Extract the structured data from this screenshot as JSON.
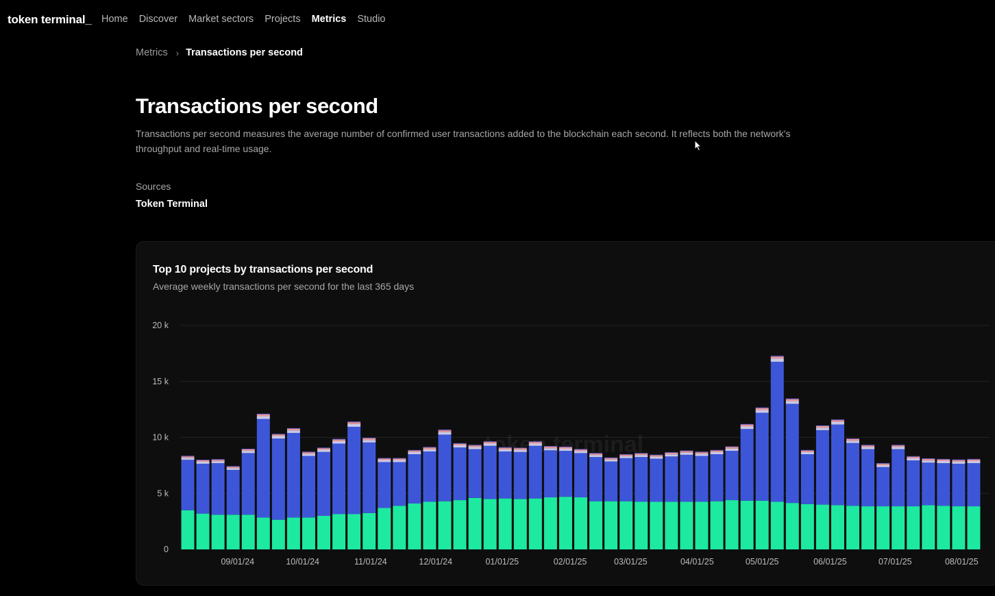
{
  "nav": {
    "logo": "token terminal_",
    "items": [
      {
        "label": "Home",
        "active": false
      },
      {
        "label": "Discover",
        "active": false
      },
      {
        "label": "Market sectors",
        "active": false
      },
      {
        "label": "Projects",
        "active": false
      },
      {
        "label": "Metrics",
        "active": true
      },
      {
        "label": "Studio",
        "active": false
      }
    ]
  },
  "breadcrumb": {
    "root": "Metrics",
    "separator": "›",
    "current": "Transactions per second"
  },
  "page": {
    "title": "Transactions per second",
    "description": "Transactions per second measures the average number of confirmed user transactions added to the blockchain each second. It reflects both the network's throughput and real-time usage.",
    "sources_label": "Sources",
    "sources_value": "Token Terminal"
  },
  "colors": {
    "green": "#1de9a0",
    "blue": "#3d56d8",
    "top1": "#c9c9e8",
    "top2": "#e79a9a",
    "top3": "#6a5ec9",
    "grid": "#232325",
    "axis_text": "#bdbdbd"
  },
  "chart_data": {
    "type": "bar",
    "stacked": true,
    "title": "Top 10 projects by transactions per second",
    "subtitle": "Average weekly transactions per second for the last 365 days",
    "watermark": "token terminal",
    "ylim": [
      0,
      20000
    ],
    "yticks": [
      {
        "value": 0,
        "label": "0"
      },
      {
        "value": 5000,
        "label": "5 k"
      },
      {
        "value": 10000,
        "label": "10 k"
      },
      {
        "value": 15000,
        "label": "15 k"
      },
      {
        "value": 20000,
        "label": "20 k"
      }
    ],
    "xtick_labels": [
      {
        "index": 3.3,
        "label": "09/01/24"
      },
      {
        "index": 7.6,
        "label": "10/01/24"
      },
      {
        "index": 12.1,
        "label": "11/01/24"
      },
      {
        "index": 16.4,
        "label": "12/01/24"
      },
      {
        "index": 20.8,
        "label": "01/01/25"
      },
      {
        "index": 25.3,
        "label": "02/01/25"
      },
      {
        "index": 29.3,
        "label": "03/01/25"
      },
      {
        "index": 33.7,
        "label": "04/01/25"
      },
      {
        "index": 38.0,
        "label": "05/01/25"
      },
      {
        "index": 42.5,
        "label": "06/01/25"
      },
      {
        "index": 46.8,
        "label": "07/01/25"
      },
      {
        "index": 51.2,
        "label": "08/01/25"
      }
    ],
    "series": [
      {
        "values": [
          3500,
          3200,
          3100,
          3100,
          3100,
          2850,
          2650,
          2850,
          2850,
          3000,
          3150,
          3150,
          3250,
          3700,
          3900,
          4100,
          4250,
          4300,
          4400,
          4600,
          4500,
          4550,
          4500,
          4550,
          4650,
          4700,
          4650,
          4300,
          4300,
          4300,
          4250,
          4250,
          4250,
          4250,
          4250,
          4300,
          4400,
          4350,
          4350,
          4250,
          4150,
          4050,
          4000,
          3950,
          3900,
          3850,
          3850,
          3850,
          3850,
          3950,
          3900,
          3850,
          3850
        ]
      },
      {
        "values": [
          4500,
          4450,
          4600,
          4000,
          5500,
          8800,
          7250,
          7550,
          5500,
          5700,
          6300,
          7800,
          6300,
          4100,
          3900,
          4400,
          4500,
          5950,
          4700,
          4350,
          4750,
          4200,
          4200,
          4700,
          4200,
          4100,
          3950,
          3950,
          3550,
          3850,
          4000,
          3850,
          4050,
          4200,
          4100,
          4200,
          4400,
          6400,
          7850,
          12500,
          8850,
          4450,
          6650,
          7200,
          5600,
          5100,
          3500,
          5100,
          4100,
          3800,
          3800,
          3800,
          3850
        ]
      },
      {
        "values": [
          180,
          180,
          180,
          170,
          200,
          250,
          220,
          230,
          190,
          200,
          220,
          250,
          220,
          180,
          180,
          190,
          200,
          230,
          200,
          200,
          200,
          190,
          190,
          200,
          190,
          190,
          180,
          180,
          180,
          180,
          180,
          180,
          190,
          190,
          190,
          190,
          200,
          230,
          250,
          280,
          250,
          190,
          220,
          230,
          210,
          200,
          180,
          200,
          190,
          190,
          190,
          190,
          190
        ]
      },
      {
        "values": [
          120,
          120,
          120,
          110,
          130,
          150,
          140,
          140,
          130,
          130,
          140,
          150,
          140,
          120,
          120,
          130,
          140,
          150,
          130,
          130,
          140,
          130,
          130,
          140,
          130,
          130,
          120,
          120,
          120,
          120,
          120,
          120,
          130,
          130,
          130,
          130,
          140,
          150,
          160,
          180,
          160,
          130,
          140,
          150,
          140,
          130,
          120,
          130,
          130,
          130,
          130,
          130,
          130
        ]
      },
      {
        "values": [
          60,
          60,
          60,
          60,
          60,
          70,
          60,
          60,
          60,
          60,
          60,
          70,
          60,
          60,
          60,
          60,
          60,
          70,
          60,
          60,
          60,
          60,
          60,
          60,
          60,
          60,
          60,
          60,
          60,
          60,
          60,
          60,
          60,
          60,
          60,
          60,
          60,
          70,
          70,
          80,
          70,
          60,
          60,
          70,
          60,
          60,
          60,
          60,
          60,
          60,
          60,
          60,
          60
        ]
      }
    ]
  }
}
